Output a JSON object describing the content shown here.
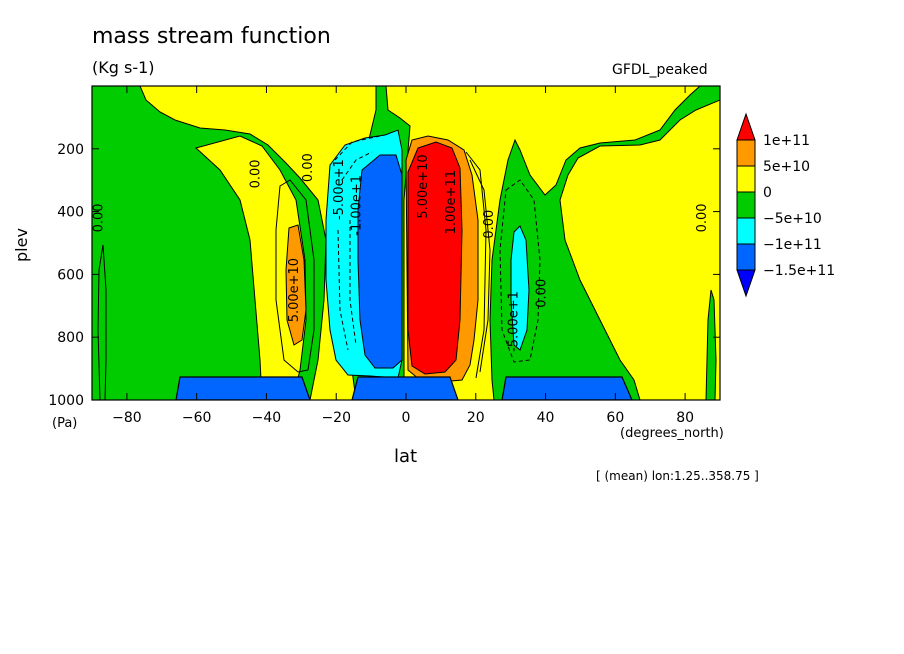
{
  "chart_data": {
    "type": "contour",
    "title": "mass stream function",
    "units": "(Kg s-1)",
    "dataset": "GFDL_peaked",
    "footer": "[ (mean) lon:1.25..358.75 ]",
    "xlabel": "lat",
    "xunit": "(degrees_north)",
    "ylabel": "plev",
    "yunit": "(Pa)",
    "xlim": [
      -90,
      90
    ],
    "ylim": [
      1000,
      0
    ],
    "xticks": [
      -80,
      -60,
      -40,
      -20,
      0,
      20,
      40,
      60,
      80
    ],
    "yticks": [
      200,
      400,
      600,
      800,
      1000
    ],
    "legend": {
      "position": "right",
      "levels": [
        "1e+11",
        "5e+10",
        "0",
        "-5e+10",
        "-1e+11",
        "-1.5e+11"
      ],
      "colors": [
        "#ff0000",
        "#ff9900",
        "#ffff00",
        "#00cc00",
        "#00ffff",
        "#0066ff",
        "#0000ff"
      ]
    },
    "contour_labels": [
      {
        "text": "5.00e+10",
        "lat": -31,
        "plev": 650
      },
      {
        "text": "-5.00e+1",
        "lat": -18,
        "plev": 330
      },
      {
        "text": "-1.00e+1",
        "lat": -13,
        "plev": 380
      },
      {
        "text": "5.00e+10",
        "lat": 6,
        "plev": 320
      },
      {
        "text": "1.00e+11",
        "lat": 14,
        "plev": 370
      },
      {
        "text": "-5.00e+1",
        "lat": 32,
        "plev": 750
      },
      {
        "text": "0.00",
        "lat": -42,
        "plev": 280
      },
      {
        "text": "0.00",
        "lat": -27,
        "plev": 260
      },
      {
        "text": "0.00",
        "lat": -87,
        "plev": 420
      },
      {
        "text": "0.00",
        "lat": 25,
        "plev": 440
      },
      {
        "text": "0.00",
        "lat": 40,
        "plev": 660
      },
      {
        "text": "0.00",
        "lat": 86,
        "plev": 420
      }
    ]
  }
}
